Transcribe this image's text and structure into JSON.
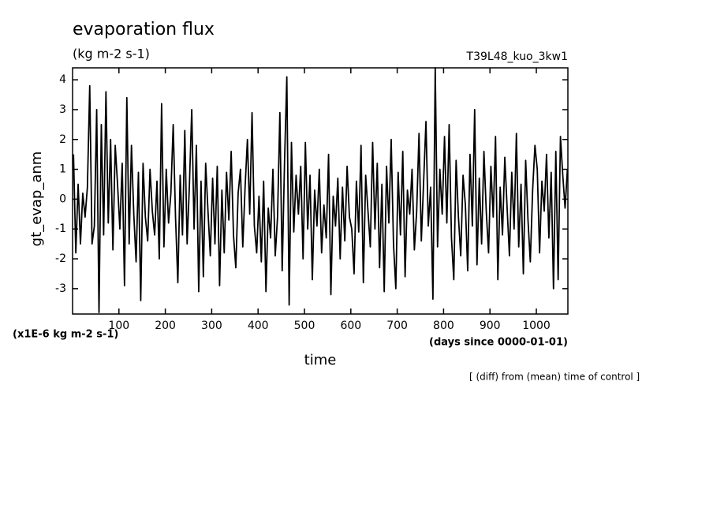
{
  "chart_data": {
    "type": "line",
    "title": "evaporation flux",
    "subtitle": "(kg m-2 s-1)",
    "experiment": "T39L48_kuo_3kw1",
    "y_label": "gt_evap_anm",
    "y_unit": "(x1E-6 kg m-2 s-1)",
    "x_label": "time",
    "x_unit": "(days since 0000-01-01)",
    "note": "[ (diff) from (mean) time of control ]",
    "xlim": [
      0,
      1068
    ],
    "ylim": [
      -3.85,
      4.4
    ],
    "xticks": [
      100,
      200,
      300,
      400,
      500,
      600,
      700,
      800,
      900,
      1000
    ],
    "yticks": [
      -3,
      -2,
      -1,
      0,
      1,
      2,
      3,
      4
    ],
    "x": [
      2,
      7,
      12,
      17,
      22,
      27,
      32,
      37,
      42,
      47,
      52,
      57,
      62,
      67,
      72,
      77,
      82,
      87,
      92,
      97,
      102,
      107,
      112,
      117,
      122,
      127,
      132,
      137,
      142,
      147,
      152,
      157,
      162,
      167,
      172,
      177,
      182,
      187,
      192,
      197,
      202,
      207,
      212,
      217,
      222,
      227,
      232,
      237,
      242,
      247,
      252,
      257,
      262,
      267,
      272,
      277,
      282,
      287,
      292,
      297,
      302,
      307,
      312,
      317,
      322,
      327,
      332,
      337,
      342,
      347,
      352,
      357,
      362,
      367,
      372,
      377,
      382,
      387,
      392,
      397,
      402,
      407,
      412,
      417,
      422,
      427,
      432,
      437,
      442,
      447,
      452,
      457,
      462,
      467,
      472,
      477,
      482,
      487,
      492,
      497,
      502,
      507,
      512,
      517,
      522,
      527,
      532,
      537,
      542,
      547,
      552,
      557,
      562,
      567,
      572,
      577,
      582,
      587,
      592,
      597,
      602,
      607,
      612,
      617,
      622,
      627,
      632,
      637,
      642,
      647,
      652,
      657,
      662,
      667,
      672,
      677,
      682,
      687,
      692,
      697,
      702,
      707,
      712,
      717,
      722,
      727,
      732,
      737,
      742,
      747,
      752,
      757,
      762,
      767,
      772,
      777,
      782,
      787,
      792,
      797,
      802,
      807,
      812,
      817,
      822,
      827,
      832,
      837,
      842,
      847,
      852,
      857,
      862,
      867,
      872,
      877,
      882,
      887,
      892,
      897,
      902,
      907,
      912,
      917,
      922,
      927,
      932,
      937,
      942,
      947,
      952,
      957,
      962,
      967,
      972,
      977,
      982,
      987,
      992,
      997,
      1002,
      1007,
      1012,
      1017,
      1022,
      1027,
      1032,
      1037,
      1042,
      1047,
      1052,
      1057,
      1062,
      1067
    ],
    "series": [
      {
        "color": "#000000",
        "values": [
          1.5,
          -1.8,
          0.5,
          -1.5,
          0.2,
          -0.6,
          0.4,
          3.8,
          -1.5,
          -0.9,
          3.0,
          -3.8,
          2.5,
          -1.2,
          3.6,
          -0.8,
          2.0,
          -1.7,
          1.8,
          0.5,
          -1.0,
          1.2,
          -2.9,
          3.4,
          -1.5,
          1.8,
          -0.5,
          -2.1,
          0.9,
          -3.4,
          1.2,
          -0.6,
          -1.4,
          1.0,
          -0.4,
          -1.2,
          0.6,
          -2.0,
          3.2,
          -1.6,
          1.0,
          -0.8,
          0.2,
          2.5,
          -0.6,
          -2.8,
          0.8,
          -1.2,
          2.3,
          -1.5,
          0.5,
          3.0,
          -1.0,
          1.8,
          -3.1,
          0.6,
          -2.6,
          1.2,
          -0.4,
          -1.9,
          0.7,
          -1.5,
          1.1,
          -2.9,
          0.3,
          -1.8,
          0.9,
          -0.7,
          1.6,
          -1.2,
          -2.3,
          0.2,
          1.0,
          -1.6,
          0.4,
          2.0,
          -0.5,
          2.9,
          -0.9,
          -1.8,
          0.1,
          -2.1,
          0.6,
          -3.1,
          -0.3,
          -1.3,
          1.0,
          -1.9,
          -0.6,
          2.9,
          -2.4,
          1.2,
          4.1,
          -3.55,
          1.9,
          -1.1,
          0.8,
          -0.5,
          1.1,
          -2.0,
          1.9,
          -1.0,
          0.8,
          -2.7,
          0.3,
          -0.9,
          1.0,
          -1.8,
          -0.2,
          -1.3,
          1.5,
          -3.2,
          0.1,
          -0.9,
          0.7,
          -2.0,
          0.4,
          -1.4,
          1.1,
          -0.6,
          -1.0,
          -2.5,
          0.6,
          -1.1,
          1.8,
          -2.8,
          0.8,
          -0.4,
          -1.6,
          1.9,
          -1.0,
          1.2,
          -2.3,
          0.5,
          -3.1,
          1.1,
          -0.8,
          2.0,
          -1.5,
          -3.0,
          0.9,
          -1.2,
          1.6,
          -2.6,
          0.3,
          -0.5,
          1.0,
          -1.7,
          -0.4,
          2.2,
          -1.4,
          0.6,
          2.6,
          -0.9,
          0.4,
          -3.35,
          4.4,
          -1.6,
          1.0,
          -0.5,
          2.1,
          -0.8,
          2.5,
          -1.3,
          -2.7,
          1.3,
          -0.6,
          -1.9,
          0.8,
          -0.2,
          -2.4,
          1.5,
          -0.9,
          3.0,
          -2.2,
          0.7,
          -1.5,
          1.6,
          -0.4,
          -1.8,
          1.1,
          -0.6,
          2.1,
          -2.7,
          0.4,
          -1.2,
          1.4,
          -0.3,
          -1.9,
          0.9,
          -1.0,
          2.2,
          -1.6,
          0.5,
          -2.5,
          1.3,
          -0.7,
          -2.1,
          0.3,
          1.8,
          1.0,
          -1.8,
          0.6,
          -0.4,
          1.5,
          -1.3,
          0.9,
          -3.0,
          1.6,
          -2.7,
          2.1,
          0.8,
          -0.3,
          1.0
        ]
      }
    ]
  }
}
